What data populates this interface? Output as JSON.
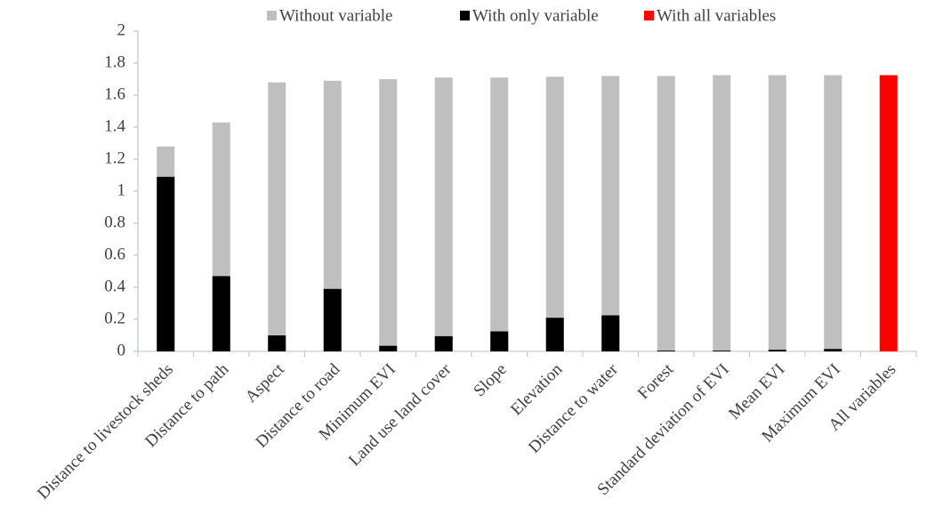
{
  "chart_data": {
    "type": "bar",
    "categories": [
      "Distance to livestock sheds",
      "Distance to path",
      "Aspect",
      "Distance to road",
      "Minimum EVI",
      "Land use land cover",
      "Slope",
      "Elevation",
      "Distance to water",
      "Forest",
      "Standard deviation of EVI",
      "Mean EVI",
      "Maximum EVI",
      "All variables"
    ],
    "series": [
      {
        "name": "Without variable",
        "color": "#bfbfbf",
        "values": [
          1.28,
          1.43,
          1.68,
          1.69,
          1.7,
          1.71,
          1.71,
          1.715,
          1.72,
          1.72,
          1.725,
          1.725,
          1.725,
          null
        ]
      },
      {
        "name": "With only variable",
        "color": "#000000",
        "values": [
          1.09,
          0.47,
          0.1,
          0.39,
          0.035,
          0.095,
          0.125,
          0.21,
          0.225,
          0.005,
          0.005,
          0.01,
          0.015,
          null
        ]
      },
      {
        "name": "With all variables",
        "color": "#ff0000",
        "values": [
          null,
          null,
          null,
          null,
          null,
          null,
          null,
          null,
          null,
          null,
          null,
          null,
          null,
          1.725
        ]
      }
    ],
    "ylim": [
      0,
      2
    ],
    "yticks": [
      0,
      0.2,
      0.4,
      0.6,
      0.8,
      1,
      1.2,
      1.4,
      1.6,
      1.8,
      2
    ],
    "overlap": true,
    "legend": "top"
  }
}
